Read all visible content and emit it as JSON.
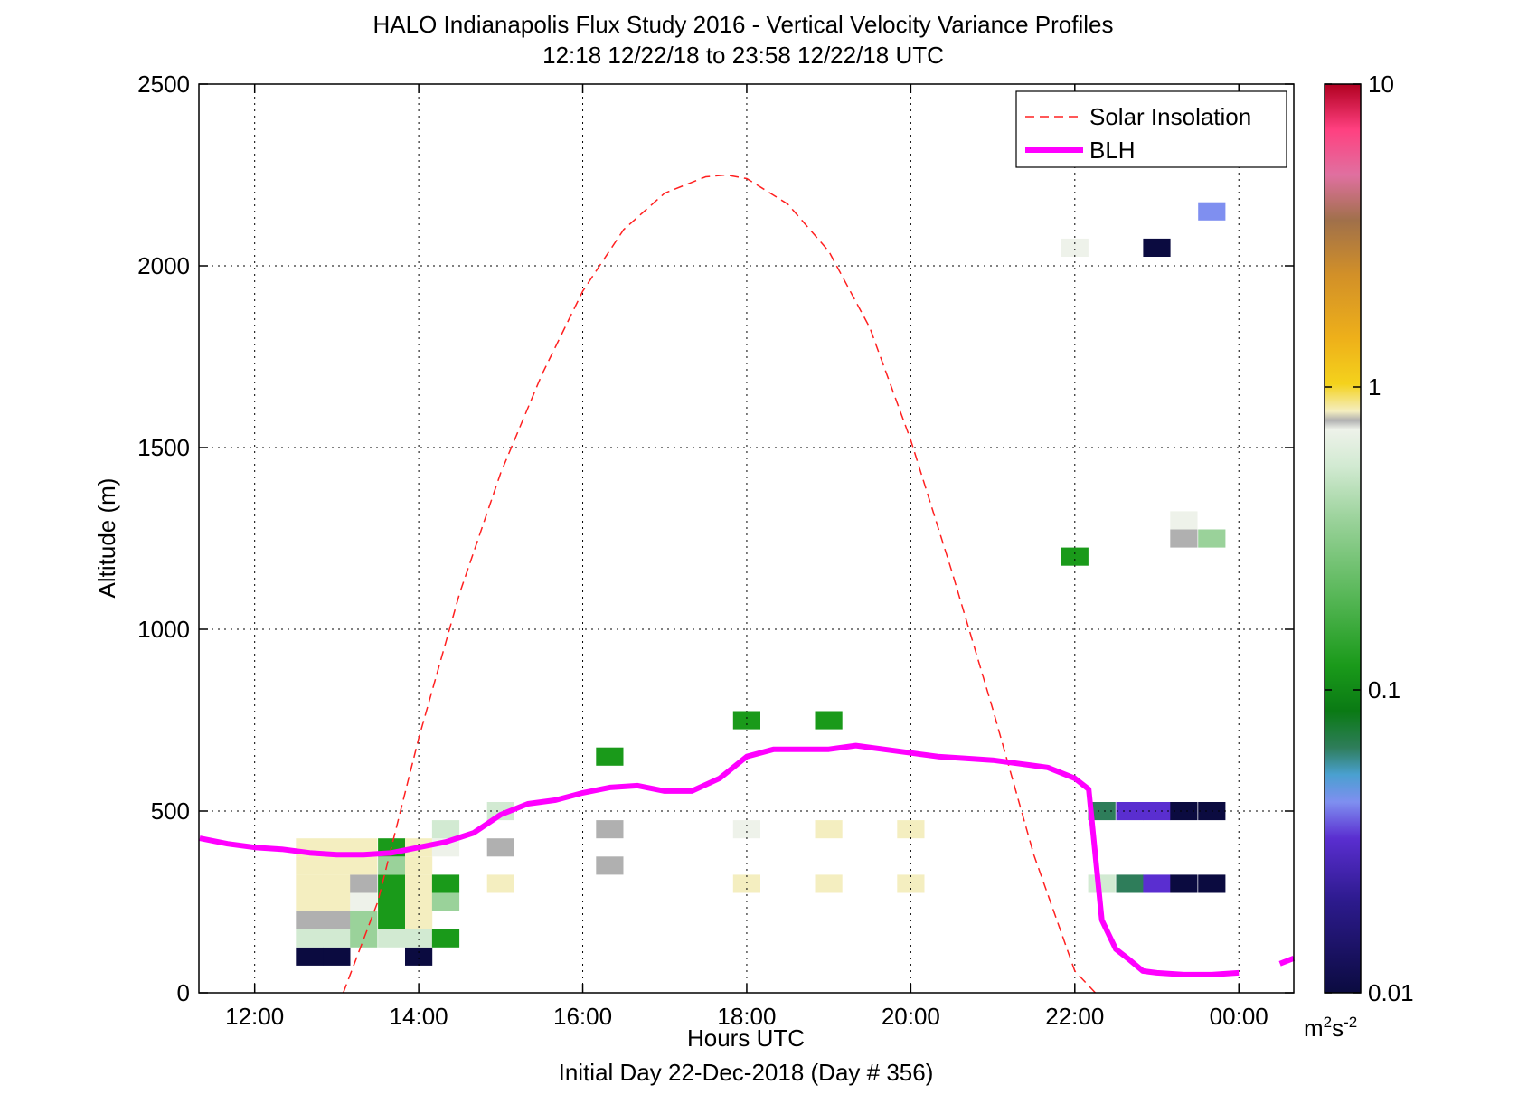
{
  "title_line1": "HALO Indianapolis Flux Study 2016 - Vertical Velocity Variance Profiles",
  "title_line2": "12:18 12/22/18 to 23:58 12/22/18  UTC",
  "xlabel": "Hours UTC",
  "footer": "Initial Day 22-Dec-2018 (Day # 356)",
  "ylabel": "Altitude (m)",
  "colorbar": {
    "ticks": [
      {
        "value": 10,
        "label": "10"
      },
      {
        "value": 1,
        "label": "1"
      },
      {
        "value": 0.1,
        "label": "0.1"
      },
      {
        "value": 0.01,
        "label": "0.01"
      }
    ],
    "unit_base": "m",
    "unit_exp1": "2",
    "unit_mid": "s",
    "unit_exp2": "-2",
    "scale": "log",
    "range": [
      0.01,
      10
    ]
  },
  "legend": {
    "placement": "top-right",
    "items": [
      {
        "label": "Solar Insolation",
        "color": "#ff2020",
        "style": "dashed"
      },
      {
        "label": "BLH",
        "color": "#ff00ff",
        "style": "solid"
      }
    ]
  },
  "chart_data": {
    "type": "heatmap",
    "title": "HALO Indianapolis Flux Study 2016 - Vertical Velocity Variance Profiles",
    "xlabel": "Hours UTC",
    "ylabel": "Altitude (m)",
    "xlim_hours": [
      11.32,
      24.67
    ],
    "ylim": [
      0,
      2500
    ],
    "x_ticks": [
      {
        "hour": 12,
        "label": "12:00"
      },
      {
        "hour": 14,
        "label": "14:00"
      },
      {
        "hour": 16,
        "label": "16:00"
      },
      {
        "hour": 18,
        "label": "18:00"
      },
      {
        "hour": 20,
        "label": "20:00"
      },
      {
        "hour": 22,
        "label": "22:00"
      },
      {
        "hour": 24,
        "label": "00:00"
      }
    ],
    "y_ticks": [
      0,
      500,
      1000,
      1500,
      2000,
      2500
    ],
    "grid": true,
    "colormap_low_to_high": [
      "#0b0b40",
      "#2c1a8c",
      "#5a2ed0",
      "#7f8ff0",
      "#4aa0d0",
      "#2e7d5a",
      "#0a7a14",
      "#1a9a1a",
      "#5ab85a",
      "#9ad29a",
      "#d2ead2",
      "#eef2ea",
      "#b0b0b0",
      "#f4eec0",
      "#f4d21c",
      "#eeb01a",
      "#d29028",
      "#a0704a",
      "#e070a0",
      "#ff4080",
      "#b00020"
    ],
    "variance_cells": [
      {
        "hour": 12.67,
        "alt": 100,
        "v": 0.01
      },
      {
        "hour": 12.67,
        "alt": 150,
        "v": 0.3
      },
      {
        "hour": 12.67,
        "alt": 200,
        "v": 0.6
      },
      {
        "hour": 12.67,
        "alt": 250,
        "v": 0.8
      },
      {
        "hour": 12.67,
        "alt": 300,
        "v": 1.0
      },
      {
        "hour": 12.67,
        "alt": 350,
        "v": 0.9
      },
      {
        "hour": 12.67,
        "alt": 400,
        "v": 0.8
      },
      {
        "hour": 13.0,
        "alt": 100,
        "v": 0.01
      },
      {
        "hour": 13.0,
        "alt": 150,
        "v": 0.3
      },
      {
        "hour": 13.0,
        "alt": 200,
        "v": 0.6
      },
      {
        "hour": 13.0,
        "alt": 250,
        "v": 0.8
      },
      {
        "hour": 13.0,
        "alt": 300,
        "v": 0.8
      },
      {
        "hour": 13.0,
        "alt": 350,
        "v": 0.9
      },
      {
        "hour": 13.0,
        "alt": 400,
        "v": 0.8
      },
      {
        "hour": 13.33,
        "alt": 150,
        "v": 0.2
      },
      {
        "hour": 13.33,
        "alt": 200,
        "v": 0.2
      },
      {
        "hour": 13.33,
        "alt": 250,
        "v": 0.5
      },
      {
        "hour": 13.33,
        "alt": 300,
        "v": 0.7
      },
      {
        "hour": 13.33,
        "alt": 350,
        "v": 1.0
      },
      {
        "hour": 13.33,
        "alt": 400,
        "v": 0.8
      },
      {
        "hour": 13.67,
        "alt": 150,
        "v": 0.3
      },
      {
        "hour": 13.67,
        "alt": 200,
        "v": 0.1
      },
      {
        "hour": 13.67,
        "alt": 250,
        "v": 0.1
      },
      {
        "hour": 13.67,
        "alt": 300,
        "v": 0.1
      },
      {
        "hour": 13.67,
        "alt": 350,
        "v": 0.2
      },
      {
        "hour": 13.67,
        "alt": 400,
        "v": 0.1
      },
      {
        "hour": 14.0,
        "alt": 100,
        "v": 0.01
      },
      {
        "hour": 14.0,
        "alt": 150,
        "v": 0.3
      },
      {
        "hour": 14.0,
        "alt": 200,
        "v": 0.8
      },
      {
        "hour": 14.0,
        "alt": 250,
        "v": 0.8
      },
      {
        "hour": 14.0,
        "alt": 300,
        "v": 0.8
      },
      {
        "hour": 14.0,
        "alt": 350,
        "v": 0.8
      },
      {
        "hour": 14.0,
        "alt": 400,
        "v": 0.8
      },
      {
        "hour": 14.33,
        "alt": 150,
        "v": 0.1
      },
      {
        "hour": 14.33,
        "alt": 250,
        "v": 0.2
      },
      {
        "hour": 14.33,
        "alt": 300,
        "v": 0.1
      },
      {
        "hour": 14.33,
        "alt": 400,
        "v": 0.5
      },
      {
        "hour": 14.33,
        "alt": 450,
        "v": 0.3
      },
      {
        "hour": 15.0,
        "alt": 300,
        "v": 0.8
      },
      {
        "hour": 15.0,
        "alt": 400,
        "v": 0.7
      },
      {
        "hour": 15.0,
        "alt": 500,
        "v": 0.3
      },
      {
        "hour": 16.33,
        "alt": 350,
        "v": 0.6
      },
      {
        "hour": 16.33,
        "alt": 450,
        "v": 0.7
      },
      {
        "hour": 16.33,
        "alt": 650,
        "v": 0.1
      },
      {
        "hour": 18.0,
        "alt": 300,
        "v": 0.8
      },
      {
        "hour": 18.0,
        "alt": 450,
        "v": 0.5
      },
      {
        "hour": 18.0,
        "alt": 750,
        "v": 0.1
      },
      {
        "hour": 19.0,
        "alt": 300,
        "v": 0.8
      },
      {
        "hour": 19.0,
        "alt": 450,
        "v": 0.8
      },
      {
        "hour": 19.0,
        "alt": 750,
        "v": 0.1
      },
      {
        "hour": 20.0,
        "alt": 300,
        "v": 0.9
      },
      {
        "hour": 20.0,
        "alt": 450,
        "v": 0.9
      },
      {
        "hour": 22.33,
        "alt": 300,
        "v": 0.3
      },
      {
        "hour": 22.33,
        "alt": 500,
        "v": 0.06
      },
      {
        "hour": 22.67,
        "alt": 300,
        "v": 0.06
      },
      {
        "hour": 22.67,
        "alt": 500,
        "v": 0.02
      },
      {
        "hour": 23.0,
        "alt": 300,
        "v": 0.02
      },
      {
        "hour": 23.0,
        "alt": 500,
        "v": 0.02
      },
      {
        "hour": 23.33,
        "alt": 300,
        "v": 0.01
      },
      {
        "hour": 23.33,
        "alt": 500,
        "v": 0.01
      },
      {
        "hour": 23.67,
        "alt": 300,
        "v": 0.01
      },
      {
        "hour": 23.67,
        "alt": 500,
        "v": 0.01
      },
      {
        "hour": 22.0,
        "alt": 1200,
        "v": 0.1
      },
      {
        "hour": 23.33,
        "alt": 1250,
        "v": 0.7
      },
      {
        "hour": 23.33,
        "alt": 1300,
        "v": 0.5
      },
      {
        "hour": 23.67,
        "alt": 1250,
        "v": 0.2
      },
      {
        "hour": 22.0,
        "alt": 2050,
        "v": 0.5
      },
      {
        "hour": 23.0,
        "alt": 2050,
        "v": 0.01
      },
      {
        "hour": 23.67,
        "alt": 2150,
        "v": 0.03
      }
    ],
    "solar_insolation": {
      "x_hours": [
        13.08,
        13.5,
        14.0,
        14.5,
        15.0,
        15.5,
        16.0,
        16.5,
        17.0,
        17.5,
        17.75,
        18.0,
        18.5,
        19.0,
        19.5,
        20.0,
        20.5,
        21.0,
        21.5,
        22.0,
        22.25
      ],
      "y_alt": [
        0,
        250,
        700,
        1100,
        1430,
        1700,
        1930,
        2100,
        2200,
        2245,
        2250,
        2240,
        2170,
        2040,
        1830,
        1520,
        1160,
        780,
        380,
        60,
        0
      ]
    },
    "blh": {
      "x_hours": [
        11.33,
        11.67,
        12.0,
        12.33,
        12.67,
        13.0,
        13.33,
        13.67,
        14.0,
        14.33,
        14.67,
        15.0,
        15.33,
        15.67,
        16.0,
        16.33,
        16.67,
        17.0,
        17.33,
        17.67,
        18.0,
        18.33,
        18.67,
        19.0,
        19.33,
        19.67,
        20.0,
        20.33,
        20.67,
        21.0,
        21.33,
        21.67,
        22.0,
        22.17,
        22.33,
        22.5,
        22.67,
        22.83,
        23.0,
        23.33,
        23.67,
        24.0
      ],
      "y_alt": [
        425,
        410,
        400,
        395,
        385,
        380,
        380,
        385,
        400,
        415,
        440,
        490,
        520,
        530,
        550,
        565,
        570,
        555,
        555,
        590,
        650,
        670,
        670,
        670,
        680,
        670,
        660,
        650,
        645,
        640,
        630,
        620,
        590,
        560,
        200,
        120,
        90,
        60,
        55,
        50,
        50,
        55
      ],
      "x_hours_tail": [
        24.5,
        24.67
      ],
      "y_alt_tail": [
        80,
        95
      ]
    }
  }
}
